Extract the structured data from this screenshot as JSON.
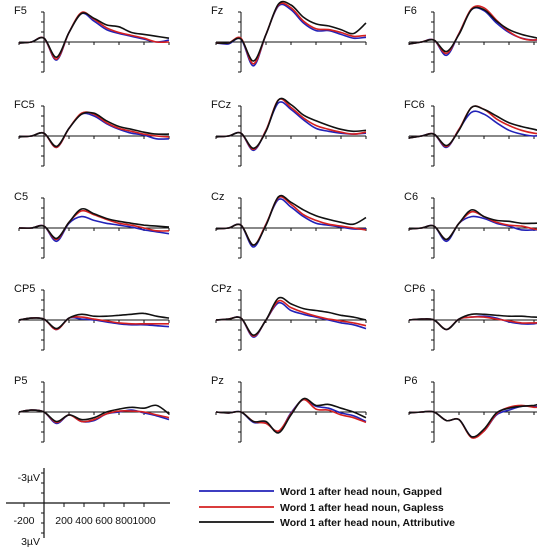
{
  "chart_data": {
    "type": "line",
    "electrodes": [
      "F5",
      "Fz",
      "F6",
      "FC5",
      "FCz",
      "FC6",
      "C5",
      "Cz",
      "C6",
      "CP5",
      "CPz",
      "CP6",
      "P5",
      "Pz",
      "P6"
    ],
    "scale_bar": {
      "y_top_label": "-3µV",
      "y_bottom_label": "3µV",
      "x_tick_labels": [
        "-200",
        "200",
        "400",
        "600",
        "800",
        "1000"
      ],
      "negative_up": true
    },
    "xlim": [
      -200,
      1000
    ],
    "ylim": [
      -3,
      3
    ],
    "grid": false,
    "legend_position": "bottom-right",
    "colors": {
      "Gapped": "#2222b8",
      "Gapless": "#d42020",
      "Attributive": "#111111"
    },
    "legend": [
      {
        "name": "Word 1 after head noun, Gapped",
        "color": "#2222b8"
      },
      {
        "name": "Word 1 after head noun, Gapless",
        "color": "#d42020"
      },
      {
        "name": "Word 1 after head noun, Attributive",
        "color": "#111111"
      }
    ],
    "time_points": [
      -200,
      -100,
      0,
      100,
      200,
      300,
      400,
      500,
      600,
      700,
      800,
      900,
      1000
    ],
    "channels": [
      {
        "name": "F5",
        "series": [
          {
            "name": "Word 1 after head noun, Gapped",
            "values": [
              0.1,
              0.0,
              -0.4,
              1.9,
              -1.0,
              -3.0,
              -2.2,
              -1.3,
              -0.9,
              -0.6,
              -0.3,
              0.0,
              -0.2
            ]
          },
          {
            "name": "Word 1 after head noun, Gapless",
            "values": [
              0.1,
              0.0,
              -0.4,
              1.8,
              -1.0,
              -3.1,
              -2.4,
              -1.5,
              -1.0,
              -0.7,
              -0.4,
              0.0,
              0.0
            ]
          },
          {
            "name": "Word 1 after head noun, Attributive",
            "values": [
              0.1,
              0.0,
              -0.4,
              1.6,
              -1.0,
              -3.0,
              -2.5,
              -1.8,
              -1.6,
              -1.0,
              -0.8,
              -0.6,
              -0.4
            ]
          }
        ]
      },
      {
        "name": "Fz",
        "series": [
          {
            "name": "Word 1 after head noun, Gapped",
            "values": [
              0.1,
              0.2,
              -0.3,
              2.5,
              -0.8,
              -3.8,
              -3.4,
              -2.0,
              -1.2,
              -1.2,
              -0.8,
              -0.4,
              -0.5
            ]
          },
          {
            "name": "Word 1 after head noun, Gapless",
            "values": [
              0.1,
              0.1,
              -0.4,
              2.3,
              -0.8,
              -3.9,
              -3.6,
              -2.2,
              -1.4,
              -1.3,
              -1.0,
              -0.6,
              -0.7
            ]
          },
          {
            "name": "Word 1 after head noun, Attributive",
            "values": [
              0.1,
              0.1,
              -0.3,
              2.0,
              -0.8,
              -4.0,
              -3.9,
              -2.6,
              -1.9,
              -1.7,
              -1.3,
              -0.9,
              -2.0
            ]
          }
        ]
      },
      {
        "name": "F6",
        "series": [
          {
            "name": "Word 1 after head noun, Gapped",
            "values": [
              0.2,
              0.0,
              -0.2,
              1.4,
              -0.9,
              -3.4,
              -3.3,
              -2.0,
              -1.0,
              -0.4,
              -0.2,
              -0.3,
              -0.4
            ]
          },
          {
            "name": "Word 1 after head noun, Gapless",
            "values": [
              0.2,
              0.0,
              -0.2,
              1.2,
              -0.9,
              -3.5,
              -3.6,
              -2.3,
              -1.1,
              -0.4,
              -0.2,
              -0.5,
              -0.2
            ]
          },
          {
            "name": "Word 1 after head noun, Attributive",
            "values": [
              0.2,
              0.0,
              -0.2,
              1.0,
              -0.8,
              -3.4,
              -3.4,
              -2.2,
              -1.3,
              -0.8,
              -0.5,
              -0.3,
              -1.3
            ]
          }
        ]
      },
      {
        "name": "FC5",
        "series": [
          {
            "name": "Word 1 after head noun, Gapped",
            "values": [
              0.1,
              0.0,
              -0.3,
              1.2,
              -0.8,
              -2.3,
              -2.1,
              -1.3,
              -0.7,
              -0.3,
              -0.1,
              0.3,
              0.3
            ]
          },
          {
            "name": "Word 1 after head noun, Gapless",
            "values": [
              0.1,
              0.0,
              -0.3,
              1.2,
              -0.8,
              -2.4,
              -2.3,
              -1.4,
              -0.8,
              -0.5,
              -0.2,
              0.0,
              0.1
            ]
          },
          {
            "name": "Word 1 after head noun, Attributive",
            "values": [
              0.1,
              0.0,
              -0.3,
              1.1,
              -0.8,
              -2.3,
              -2.4,
              -1.6,
              -1.0,
              -0.7,
              -0.4,
              -0.2,
              -0.2
            ]
          }
        ]
      },
      {
        "name": "FCz",
        "series": [
          {
            "name": "Word 1 after head noun, Gapped",
            "values": [
              0.1,
              0.0,
              -0.3,
              1.5,
              -0.6,
              -3.5,
              -2.8,
              -1.7,
              -0.8,
              -0.5,
              -0.3,
              -0.2,
              -0.3
            ]
          },
          {
            "name": "Word 1 after head noun, Gapless",
            "values": [
              0.1,
              0.0,
              -0.3,
              1.4,
              -0.6,
              -3.8,
              -3.0,
              -1.9,
              -1.1,
              -0.7,
              -0.4,
              -0.2,
              -0.4
            ]
          },
          {
            "name": "Word 1 after head noun, Attributive",
            "values": [
              0.1,
              0.0,
              -0.3,
              1.3,
              -0.5,
              -3.8,
              -3.3,
              -2.2,
              -1.6,
              -1.1,
              -0.7,
              -0.5,
              -0.6
            ]
          }
        ]
      },
      {
        "name": "FC6",
        "series": [
          {
            "name": "Word 1 after head noun, Gapped",
            "values": [
              0.2,
              0.0,
              -0.2,
              1.2,
              -0.7,
              -2.5,
              -2.3,
              -1.4,
              -0.6,
              -0.2,
              0.0,
              -0.2,
              -0.3
            ]
          },
          {
            "name": "Word 1 after head noun, Gapless",
            "values": [
              0.2,
              0.0,
              -0.2,
              1.1,
              -0.7,
              -3.0,
              -2.8,
              -1.8,
              -1.1,
              -0.6,
              -0.3,
              -0.2,
              -0.5
            ]
          },
          {
            "name": "Word 1 after head noun, Attributive",
            "values": [
              0.2,
              0.0,
              -0.2,
              1.0,
              -0.6,
              -3.0,
              -2.8,
              -2.1,
              -1.4,
              -1.0,
              -0.7,
              -0.4,
              -0.6
            ]
          }
        ]
      },
      {
        "name": "C5",
        "series": [
          {
            "name": "Word 1 after head noun, Gapped",
            "values": [
              0.0,
              0.0,
              -0.2,
              1.4,
              -0.5,
              -1.2,
              -0.8,
              -0.5,
              -0.3,
              -0.1,
              0.2,
              0.4,
              0.6
            ]
          },
          {
            "name": "Word 1 after head noun, Gapless",
            "values": [
              0.0,
              0.0,
              -0.2,
              1.2,
              -0.6,
              -1.8,
              -1.4,
              -0.9,
              -0.5,
              -0.3,
              0.0,
              0.3,
              0.3
            ]
          },
          {
            "name": "Word 1 after head noun, Attributive",
            "values": [
              0.0,
              0.0,
              -0.2,
              1.1,
              -0.6,
              -2.0,
              -1.5,
              -1.0,
              -0.7,
              -0.5,
              -0.3,
              -0.2,
              -0.1
            ]
          }
        ]
      },
      {
        "name": "Cz",
        "series": [
          {
            "name": "Word 1 after head noun, Gapped",
            "values": [
              0.1,
              0.0,
              -0.3,
              2.0,
              -0.4,
              -3.0,
              -2.2,
              -1.2,
              -0.5,
              -0.3,
              -0.1,
              0.1,
              0.1
            ]
          },
          {
            "name": "Word 1 after head noun, Gapless",
            "values": [
              0.1,
              0.0,
              -0.3,
              1.8,
              -0.4,
              -3.2,
              -2.5,
              -1.4,
              -0.8,
              -0.4,
              -0.2,
              0.0,
              0.2
            ]
          },
          {
            "name": "Word 1 after head noun, Attributive",
            "values": [
              0.1,
              0.0,
              -0.3,
              1.8,
              -0.3,
              -3.3,
              -2.7,
              -1.9,
              -1.3,
              -0.9,
              -0.6,
              -0.4,
              -1.1
            ]
          }
        ]
      },
      {
        "name": "C6",
        "series": [
          {
            "name": "Word 1 after head noun, Gapped",
            "values": [
              0.1,
              0.0,
              -0.2,
              1.4,
              -0.5,
              -1.2,
              -1.0,
              -0.5,
              -0.2,
              0.2,
              0.2,
              0.2,
              0.4
            ]
          },
          {
            "name": "Word 1 after head noun, Gapless",
            "values": [
              0.1,
              0.0,
              -0.2,
              1.2,
              -0.5,
              -1.7,
              -1.2,
              -0.6,
              -0.3,
              -0.2,
              0.1,
              0.3,
              0.2
            ]
          },
          {
            "name": "Word 1 after head noun, Attributive",
            "values": [
              0.1,
              0.0,
              -0.2,
              1.2,
              -0.5,
              -1.9,
              -1.2,
              -0.8,
              -0.7,
              -0.5,
              -0.5,
              -0.6,
              -1.0
            ]
          }
        ]
      },
      {
        "name": "CP5",
        "series": [
          {
            "name": "Word 1 after head noun, Gapped",
            "values": [
              0.0,
              -0.2,
              -0.1,
              1.0,
              -0.2,
              -0.1,
              0.0,
              0.2,
              0.4,
              0.5,
              0.5,
              0.6,
              0.7
            ]
          },
          {
            "name": "Word 1 after head noun, Gapless",
            "values": [
              0.0,
              -0.2,
              -0.1,
              1.0,
              -0.2,
              -0.3,
              -0.1,
              0.1,
              0.3,
              0.4,
              0.4,
              0.4,
              0.4
            ]
          },
          {
            "name": "Word 1 after head noun, Attributive",
            "values": [
              0.0,
              -0.2,
              -0.1,
              0.9,
              -0.2,
              -0.6,
              -0.4,
              -0.4,
              -0.5,
              -0.6,
              -0.7,
              -0.4,
              -0.2
            ]
          }
        ]
      },
      {
        "name": "CPz",
        "series": [
          {
            "name": "Word 1 after head noun, Gapped",
            "values": [
              0.0,
              -0.1,
              -0.2,
              1.8,
              0.0,
              -1.8,
              -1.0,
              -0.6,
              -0.3,
              0.0,
              0.3,
              0.5,
              0.9
            ]
          },
          {
            "name": "Word 1 after head noun, Gapless",
            "values": [
              0.0,
              -0.1,
              -0.2,
              1.7,
              0.0,
              -2.0,
              -1.3,
              -0.8,
              -0.4,
              -0.1,
              0.1,
              0.3,
              0.6
            ]
          },
          {
            "name": "Word 1 after head noun, Attributive",
            "values": [
              0.0,
              -0.1,
              -0.2,
              1.6,
              0.0,
              -2.3,
              -1.7,
              -1.2,
              -1.0,
              -0.8,
              -0.5,
              -0.3,
              0.0
            ]
          }
        ]
      },
      {
        "name": "CP6",
        "series": [
          {
            "name": "Word 1 after head noun, Gapped",
            "values": [
              0.0,
              -0.1,
              0.0,
              1.0,
              -0.1,
              -0.3,
              -0.4,
              -0.2,
              0.2,
              0.4,
              0.4,
              0.2,
              0.6
            ]
          },
          {
            "name": "Word 1 after head noun, Gapless",
            "values": [
              0.0,
              -0.1,
              0.0,
              1.0,
              -0.1,
              -0.3,
              -0.3,
              -0.1,
              0.1,
              0.3,
              0.3,
              0.3,
              0.5
            ]
          },
          {
            "name": "Word 1 after head noun, Attributive",
            "values": [
              0.0,
              -0.1,
              0.0,
              1.0,
              -0.1,
              -0.6,
              -0.6,
              -0.5,
              -0.4,
              -0.4,
              -0.3,
              -0.3,
              -0.2
            ]
          }
        ]
      },
      {
        "name": "P5",
        "series": [
          {
            "name": "Word 1 after head noun, Gapped",
            "values": [
              0.0,
              -0.2,
              0.0,
              1.2,
              0.3,
              1.0,
              0.9,
              0.2,
              0.0,
              -0.2,
              0.1,
              0.4,
              0.8
            ]
          },
          {
            "name": "Word 1 after head noun, Gapless",
            "values": [
              0.0,
              -0.2,
              0.0,
              1.1,
              0.3,
              1.0,
              0.8,
              0.2,
              -0.1,
              -0.1,
              0.0,
              0.3,
              0.6
            ]
          },
          {
            "name": "Word 1 after head noun, Attributive",
            "values": [
              0.0,
              -0.2,
              0.0,
              1.0,
              0.3,
              0.8,
              0.6,
              0.0,
              -0.3,
              -0.5,
              -0.4,
              -0.7,
              0.2
            ]
          }
        ]
      },
      {
        "name": "Pz",
        "series": [
          {
            "name": "Word 1 after head noun, Gapped",
            "values": [
              0.0,
              0.1,
              0.0,
              1.1,
              1.1,
              2.1,
              0.1,
              -1.3,
              -0.6,
              -0.4,
              0.1,
              0.4,
              1.0
            ]
          },
          {
            "name": "Word 1 after head noun, Gapless",
            "values": [
              0.0,
              0.1,
              0.0,
              1.0,
              1.2,
              2.0,
              0.2,
              -1.3,
              -0.3,
              -0.2,
              0.3,
              0.6,
              1.1
            ]
          },
          {
            "name": "Word 1 after head noun, Attributive",
            "values": [
              0.0,
              0.1,
              0.0,
              1.0,
              1.0,
              2.2,
              0.3,
              -1.4,
              -0.7,
              -0.8,
              -0.4,
              0.0,
              0.6
            ]
          }
        ]
      },
      {
        "name": "P6",
        "series": [
          {
            "name": "Word 1 after head noun, Gapped",
            "values": [
              0.1,
              0.0,
              0.0,
              0.9,
              0.8,
              2.6,
              2.0,
              0.3,
              -0.2,
              -0.6,
              -0.6,
              -0.3,
              0.8
            ]
          },
          {
            "name": "Word 1 after head noun, Gapless",
            "values": [
              0.1,
              0.0,
              0.0,
              0.9,
              0.8,
              2.7,
              2.0,
              0.2,
              -0.5,
              -0.7,
              -0.5,
              -0.4,
              0.6
            ]
          },
          {
            "name": "Word 1 after head noun, Attributive",
            "values": [
              0.1,
              0.0,
              0.0,
              0.9,
              0.8,
              2.6,
              1.8,
              0.1,
              -0.4,
              -0.6,
              -0.7,
              -0.9,
              0.3
            ]
          }
        ]
      }
    ]
  }
}
